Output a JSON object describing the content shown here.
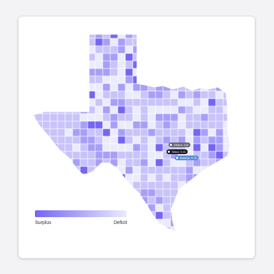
{
  "legend": {
    "low_label": "Surplus",
    "high_label": "Deficit",
    "low_color": "#7466f4",
    "high_color": "#ecebfd"
  },
  "colors": {
    "fill_light": "#ecebfd",
    "fill_mid": "#c9c3fb",
    "fill_dark": "#a79ff7",
    "fill_darkest": "#7466f4",
    "border": "#ffffff"
  },
  "markers": [
    {
      "label": "Killeen: 133",
      "color": "#6b6b78"
    },
    {
      "label": "Waco: 9.41",
      "color": "#1c1c24"
    },
    {
      "label": "Bastrop: 4.75",
      "color": "#5b8fd8"
    }
  ]
}
